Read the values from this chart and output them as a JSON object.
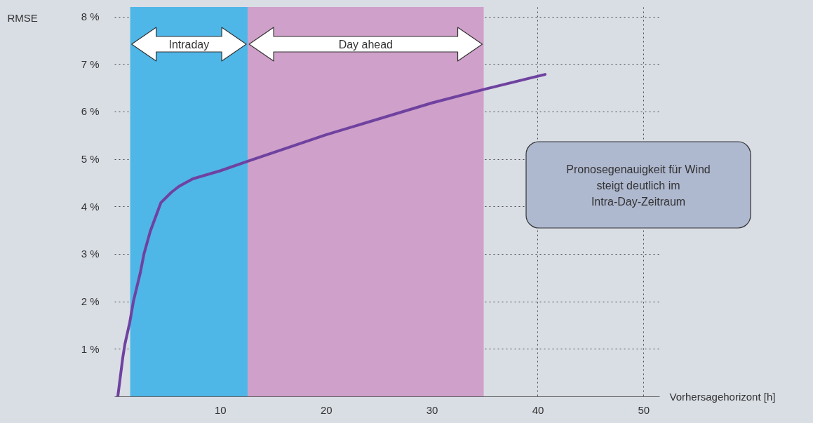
{
  "chart_data": {
    "type": "line",
    "ylabel": "RMSE",
    "xlabel": "Vorhersagehorizont [h]",
    "x": [
      0.33,
      0.8,
      1.0,
      1.46,
      1.8,
      2.45,
      2.8,
      3.4,
      4.1,
      4.4,
      5.4,
      6.1,
      7.4,
      10,
      12.6,
      20,
      30,
      35,
      40.7
    ],
    "series": [
      {
        "color": "#6f42a0",
        "values": [
          0,
          0.82,
          1.1,
          1.56,
          2.0,
          2.6,
          3.0,
          3.48,
          3.9,
          4.08,
          4.3,
          4.42,
          4.58,
          4.75,
          4.95,
          5.51,
          6.18,
          6.47,
          6.78
        ]
      }
    ],
    "xlim": [
      0,
      51.5
    ],
    "ylim": [
      0,
      8.2
    ],
    "xticks": [
      10,
      20,
      30,
      40,
      50
    ],
    "yticks": [
      {
        "value": 1,
        "label": "1 %"
      },
      {
        "value": 2,
        "label": "2 %"
      },
      {
        "value": 3,
        "label": "3 %"
      },
      {
        "value": 4,
        "label": "4 %"
      },
      {
        "value": 5,
        "label": "5 %"
      },
      {
        "value": 6,
        "label": "6 %"
      },
      {
        "value": 7,
        "label": "7 %"
      },
      {
        "value": 8,
        "label": "8 %"
      }
    ],
    "grid": true,
    "bands": [
      {
        "axis": "x",
        "from": 1.5,
        "to": 12.6,
        "label": "Intraday",
        "color": "#4fb6e8"
      },
      {
        "axis": "x",
        "from": 12.6,
        "to": 34.9,
        "label": "Day ahead",
        "color": "#cfa0c9"
      }
    ],
    "annotations": [
      "Pronosegenauigkeit für Wind steigt deutlich im Intra-Day-Zeitraum"
    ]
  }
}
